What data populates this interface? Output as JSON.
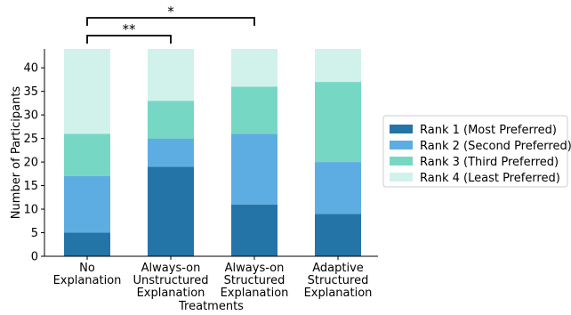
{
  "chart_data": {
    "type": "bar",
    "stacked": true,
    "categories": [
      [
        "No",
        "Explanation"
      ],
      [
        "Always-on",
        "Unstructured",
        "Explanation"
      ],
      [
        "Always-on",
        "Structured",
        "Explanation"
      ],
      [
        "Adaptive",
        "Structured",
        "Explanation"
      ]
    ],
    "series": [
      {
        "name": "Rank 1 (Most Preferred)",
        "values": [
          5,
          19,
          11,
          9
        ],
        "color": "#2474a8"
      },
      {
        "name": "Rank 2 (Second Preferred)",
        "values": [
          12,
          6,
          15,
          11
        ],
        "color": "#5dade2"
      },
      {
        "name": "Rank 3 (Third Preferred)",
        "values": [
          9,
          8,
          10,
          17
        ],
        "color": "#76d7c4"
      },
      {
        "name": "Rank 4 (Least Preferred)",
        "values": [
          18,
          11,
          8,
          7
        ],
        "color": "#d1f2eb"
      }
    ],
    "xlabel": "Treatments",
    "ylabel": "Number of Participants",
    "ylim": [
      0,
      44
    ],
    "yticks": [
      0,
      5,
      10,
      15,
      20,
      25,
      30,
      35,
      40
    ],
    "legend_position": "right",
    "grid": false,
    "significance": [
      {
        "from": 0,
        "to": 1,
        "label": "**"
      },
      {
        "from": 0,
        "to": 2,
        "label": "*"
      }
    ]
  }
}
